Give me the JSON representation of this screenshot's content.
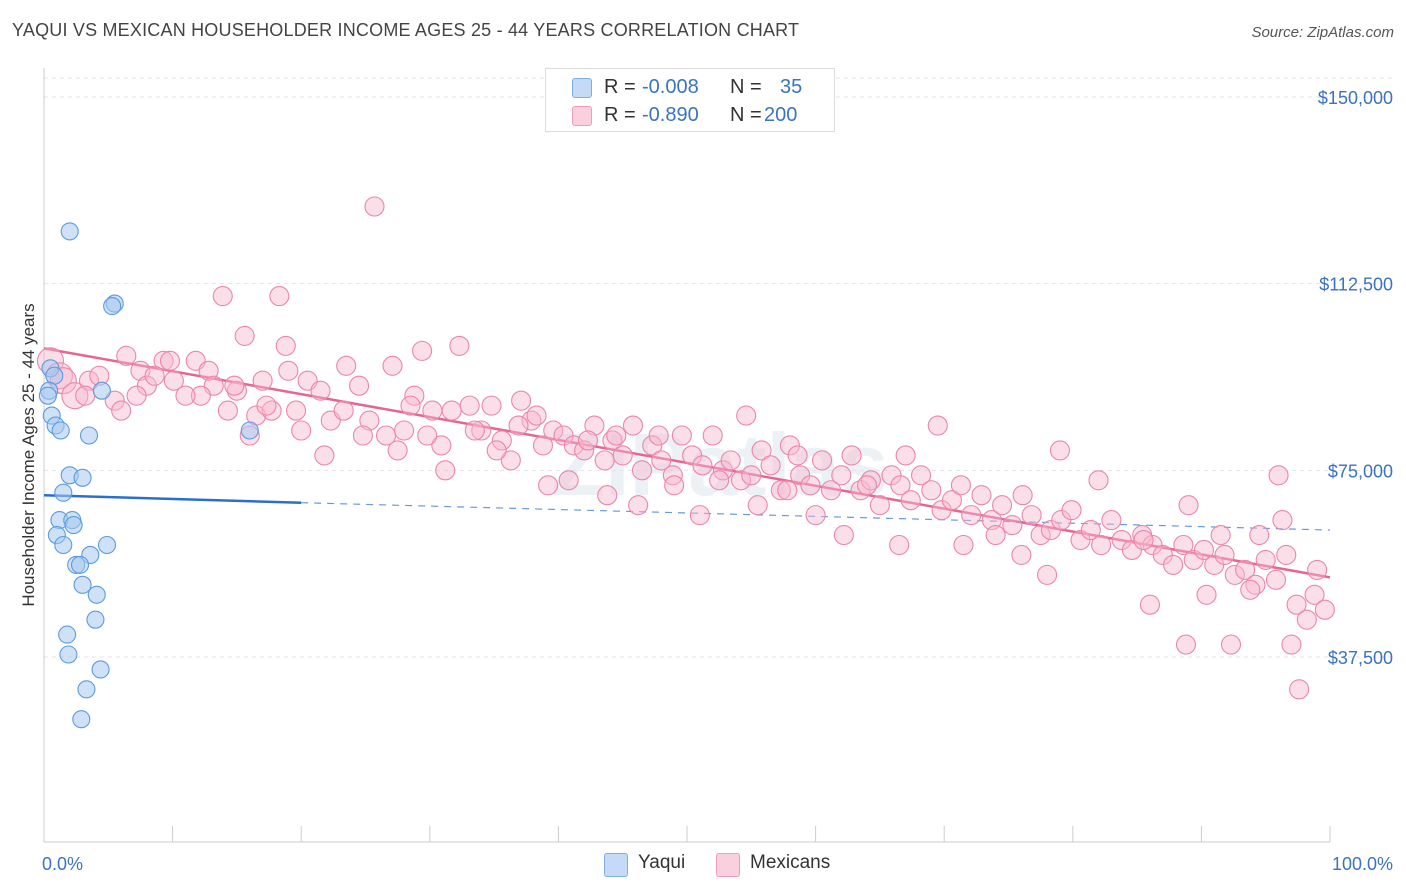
{
  "title": "YAQUI VS MEXICAN HOUSEHOLDER INCOME AGES 25 - 44 YEARS CORRELATION CHART",
  "source": "Source: ZipAtlas.com",
  "watermark": "ZIPatlas",
  "legend": {
    "rows": [
      {
        "r_label": "R =",
        "r_value": "-0.008",
        "n_label": "N =",
        "n_value": "35",
        "color": "#a8c8f0"
      },
      {
        "r_label": "R =",
        "r_value": "-0.890",
        "n_label": "N =",
        "n_value": "200",
        "color": "#f7b7cb"
      }
    ]
  },
  "bottom_legend": {
    "items": [
      {
        "label": "Yaqui",
        "color": "#a8c8f0"
      },
      {
        "label": "Mexicans",
        "color": "#f7b7cb"
      }
    ]
  },
  "chart_data": {
    "type": "scatter",
    "ylabel": "Householder Income Ages 25 - 44 years",
    "xlabel": "",
    "x_tick_labels": [
      "0.0%",
      "100.0%"
    ],
    "y_tick_labels": [
      "$37,500",
      "$75,000",
      "$112,500",
      "$150,000"
    ],
    "y_ticks": [
      37500,
      75000,
      112500,
      150000
    ],
    "xlim": [
      0,
      100
    ],
    "ylim": [
      0,
      155000
    ],
    "grid": true,
    "legend_position": "top-center",
    "colors": {
      "yaqui": "#5b9be0",
      "mexicans": "#ee85a8",
      "yaqui_line": "#2a6fd0",
      "mexicans_line": "#e76592"
    },
    "series": [
      {
        "name": "Yaqui",
        "trend": {
          "x": [
            0,
            20
          ],
          "y": [
            70000,
            68500
          ],
          "dashed_to": [
            100,
            63000
          ]
        },
        "points": [
          [
            2,
            123000
          ],
          [
            5.5,
            108500
          ],
          [
            5.3,
            108000
          ],
          [
            0.5,
            95500
          ],
          [
            0.8,
            94000
          ],
          [
            0.4,
            91000
          ],
          [
            0.3,
            90000
          ],
          [
            4.5,
            91000
          ],
          [
            0.6,
            86000
          ],
          [
            0.9,
            84000
          ],
          [
            1.3,
            83000
          ],
          [
            3.5,
            82000
          ],
          [
            16,
            83000
          ],
          [
            2,
            74000
          ],
          [
            3,
            73500
          ],
          [
            1.5,
            70500
          ],
          [
            1.2,
            65000
          ],
          [
            2.2,
            65000
          ],
          [
            1.0,
            62000
          ],
          [
            2.3,
            64000
          ],
          [
            1.5,
            60000
          ],
          [
            3.6,
            58000
          ],
          [
            4.9,
            60000
          ],
          [
            2.5,
            56000
          ],
          [
            2.8,
            56000
          ],
          [
            3.0,
            52000
          ],
          [
            4.1,
            50000
          ],
          [
            4.0,
            45000
          ],
          [
            1.8,
            42000
          ],
          [
            1.9,
            38000
          ],
          [
            4.4,
            35000
          ],
          [
            3.3,
            31000
          ],
          [
            2.9,
            25000
          ]
        ]
      },
      {
        "name": "Mexicans",
        "trend": {
          "x": [
            0,
            100
          ],
          "y": [
            99500,
            53500
          ]
        },
        "points": [
          [
            0.5,
            97000
          ],
          [
            1.2,
            94000
          ],
          [
            1.5,
            93000
          ],
          [
            2.4,
            90000
          ],
          [
            3.5,
            93000
          ],
          [
            4.3,
            94000
          ],
          [
            5.5,
            89000
          ],
          [
            6.4,
            98000
          ],
          [
            7.5,
            95000
          ],
          [
            8.0,
            92000
          ],
          [
            9.3,
            97000
          ],
          [
            10.1,
            93000
          ],
          [
            11.8,
            97000
          ],
          [
            12.8,
            95000
          ],
          [
            13.2,
            92000
          ],
          [
            13.9,
            110000
          ],
          [
            14.3,
            87000
          ],
          [
            15.0,
            91000
          ],
          [
            15.6,
            102000
          ],
          [
            16.5,
            86000
          ],
          [
            17.0,
            93000
          ],
          [
            17.7,
            87000
          ],
          [
            18.3,
            110000
          ],
          [
            18.8,
            100000
          ],
          [
            19.6,
            87000
          ],
          [
            20.5,
            93000
          ],
          [
            21.5,
            91000
          ],
          [
            22.3,
            85000
          ],
          [
            23.5,
            96000
          ],
          [
            24.5,
            92000
          ],
          [
            25.3,
            85000
          ],
          [
            25.7,
            128000
          ],
          [
            27.1,
            96000
          ],
          [
            28.0,
            83000
          ],
          [
            28.8,
            90000
          ],
          [
            29.4,
            99000
          ],
          [
            30.2,
            87000
          ],
          [
            30.9,
            80000
          ],
          [
            31.7,
            87000
          ],
          [
            32.3,
            100000
          ],
          [
            33.1,
            88000
          ],
          [
            34.0,
            83000
          ],
          [
            34.8,
            88000
          ],
          [
            35.6,
            81000
          ],
          [
            36.3,
            77000
          ],
          [
            37.1,
            89000
          ],
          [
            37.9,
            85000
          ],
          [
            38.8,
            80000
          ],
          [
            39.6,
            83000
          ],
          [
            40.4,
            82000
          ],
          [
            41.2,
            80000
          ],
          [
            42.0,
            79000
          ],
          [
            42.8,
            84000
          ],
          [
            43.6,
            77000
          ],
          [
            44.2,
            81000
          ],
          [
            45.0,
            78000
          ],
          [
            45.8,
            84000
          ],
          [
            46.5,
            75000
          ],
          [
            47.3,
            80000
          ],
          [
            48.0,
            77000
          ],
          [
            48.9,
            74000
          ],
          [
            49.6,
            82000
          ],
          [
            50.4,
            78000
          ],
          [
            51.2,
            76000
          ],
          [
            52.0,
            82000
          ],
          [
            52.8,
            75000
          ],
          [
            53.4,
            77000
          ],
          [
            54.2,
            73000
          ],
          [
            55.0,
            74000
          ],
          [
            55.8,
            79000
          ],
          [
            56.5,
            76000
          ],
          [
            57.3,
            71000
          ],
          [
            58.0,
            80000
          ],
          [
            58.8,
            74000
          ],
          [
            59.6,
            72000
          ],
          [
            60.5,
            77000
          ],
          [
            61.2,
            71000
          ],
          [
            62.0,
            74000
          ],
          [
            62.8,
            78000
          ],
          [
            63.5,
            71000
          ],
          [
            64.3,
            73000
          ],
          [
            65.0,
            68000
          ],
          [
            65.9,
            74000
          ],
          [
            66.6,
            72000
          ],
          [
            67.4,
            69000
          ],
          [
            68.2,
            74000
          ],
          [
            69.0,
            71000
          ],
          [
            69.8,
            67000
          ],
          [
            70.6,
            69000
          ],
          [
            71.3,
            72000
          ],
          [
            72.1,
            66000
          ],
          [
            72.9,
            70000
          ],
          [
            73.7,
            65000
          ],
          [
            74.5,
            68000
          ],
          [
            75.3,
            64000
          ],
          [
            76.1,
            70000
          ],
          [
            76.8,
            66000
          ],
          [
            77.5,
            62000
          ],
          [
            78.3,
            63000
          ],
          [
            79.1,
            65000
          ],
          [
            79.9,
            67000
          ],
          [
            80.6,
            61000
          ],
          [
            81.4,
            63000
          ],
          [
            82.2,
            60000
          ],
          [
            83.0,
            65000
          ],
          [
            83.8,
            61000
          ],
          [
            84.6,
            59000
          ],
          [
            85.4,
            62000
          ],
          [
            86.2,
            60000
          ],
          [
            87.0,
            58000
          ],
          [
            87.8,
            56000
          ],
          [
            88.6,
            60000
          ],
          [
            89.4,
            57000
          ],
          [
            90.2,
            59000
          ],
          [
            91.0,
            56000
          ],
          [
            91.8,
            58000
          ],
          [
            92.6,
            54000
          ],
          [
            93.4,
            55000
          ],
          [
            94.2,
            52000
          ],
          [
            95.0,
            57000
          ],
          [
            95.8,
            53000
          ],
          [
            96.6,
            58000
          ],
          [
            97.4,
            48000
          ],
          [
            98.2,
            45000
          ],
          [
            99.0,
            55000
          ],
          [
            96.0,
            74000
          ],
          [
            93.8,
            51000
          ],
          [
            90.4,
            50000
          ],
          [
            88.8,
            40000
          ],
          [
            86.0,
            48000
          ],
          [
            92.3,
            40000
          ],
          [
            97.0,
            40000
          ],
          [
            97.6,
            31000
          ],
          [
            98.8,
            50000
          ],
          [
            99.6,
            47000
          ],
          [
            96.3,
            65000
          ],
          [
            94.5,
            62000
          ],
          [
            91.5,
            62000
          ],
          [
            89.0,
            68000
          ],
          [
            85.5,
            61000
          ],
          [
            82.0,
            73000
          ],
          [
            79.0,
            79000
          ],
          [
            78.0,
            54000
          ],
          [
            76.0,
            58000
          ],
          [
            74.0,
            62000
          ],
          [
            71.5,
            60000
          ],
          [
            69.5,
            84000
          ],
          [
            67.0,
            78000
          ],
          [
            66.5,
            60000
          ],
          [
            64.0,
            72000
          ],
          [
            62.2,
            62000
          ],
          [
            60.0,
            66000
          ],
          [
            58.6,
            78000
          ],
          [
            57.8,
            71000
          ],
          [
            55.5,
            68000
          ],
          [
            54.6,
            86000
          ],
          [
            52.5,
            73000
          ],
          [
            51.0,
            66000
          ],
          [
            49.0,
            72000
          ],
          [
            47.8,
            82000
          ],
          [
            46.2,
            68000
          ],
          [
            44.5,
            82000
          ],
          [
            43.8,
            70000
          ],
          [
            42.3,
            81000
          ],
          [
            40.8,
            73000
          ],
          [
            39.2,
            72000
          ],
          [
            38.3,
            86000
          ],
          [
            36.9,
            84000
          ],
          [
            35.2,
            79000
          ],
          [
            33.5,
            83000
          ],
          [
            31.2,
            75000
          ],
          [
            29.8,
            82000
          ],
          [
            28.5,
            88000
          ],
          [
            27.5,
            79000
          ],
          [
            26.6,
            82000
          ],
          [
            24.8,
            82000
          ],
          [
            23.3,
            87000
          ],
          [
            21.8,
            78000
          ],
          [
            20.0,
            83000
          ],
          [
            19.0,
            95000
          ],
          [
            17.3,
            88000
          ],
          [
            16.0,
            82000
          ],
          [
            14.8,
            92000
          ],
          [
            12.2,
            90000
          ],
          [
            11.0,
            90000
          ],
          [
            9.8,
            97000
          ],
          [
            8.6,
            94000
          ],
          [
            7.2,
            90000
          ],
          [
            6.0,
            87000
          ],
          [
            3.2,
            90000
          ]
        ]
      }
    ]
  }
}
